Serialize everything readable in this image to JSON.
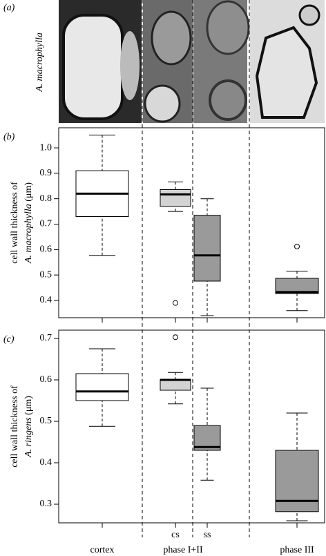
{
  "panel_a": {
    "label": "(a)",
    "species": "A. macrophylla"
  },
  "chart_data": [
    {
      "type": "box",
      "panel_label": "(b)",
      "y_label": {
        "line1": "cell wall thickness of",
        "species": "A. macrophylla",
        "unit": "(μm)"
      },
      "ylim": [
        0.332,
        1.079
      ],
      "yticks": [
        0.4,
        0.5,
        0.6,
        0.7,
        0.8,
        0.9,
        {
          "value": 1,
          "label": "1.0"
        }
      ],
      "colors": [
        "#ffffff",
        "#d3d3d3",
        "#9a9a9a",
        "#9a9a9a"
      ],
      "boxes": [
        {
          "low": 0.577,
          "q1": 0.73,
          "median": 0.82,
          "q3": 0.91,
          "high": 1.05,
          "outliers": []
        },
        {
          "low": 0.75,
          "q1": 0.77,
          "median": 0.817,
          "q3": 0.836,
          "high": 0.866,
          "outliers": [
            0.39
          ]
        },
        {
          "low": 0.34,
          "q1": 0.476,
          "median": 0.577,
          "q3": 0.735,
          "high": 0.8,
          "outliers": []
        },
        {
          "low": 0.36,
          "q1": 0.427,
          "median": 0.433,
          "q3": 0.487,
          "high": 0.515,
          "outliers": [
            0.612
          ]
        }
      ]
    },
    {
      "type": "box",
      "panel_label": "(c)",
      "y_label": {
        "line1": "cell wall thickness of",
        "species": "A. ringens",
        "unit": "(μm)"
      },
      "ylim": [
        0.255,
        0.72
      ],
      "yticks": [
        0.3,
        0.4,
        0.5,
        0.6,
        0.7
      ],
      "colors": [
        "#ffffff",
        "#d3d3d3",
        "#9a9a9a",
        "#9a9a9a"
      ],
      "categories": [
        "cortex",
        "cs",
        "ss",
        "phase III"
      ],
      "group_label": "phase I+II",
      "boxes": [
        {
          "low": 0.488,
          "q1": 0.55,
          "median": 0.572,
          "q3": 0.615,
          "high": 0.675,
          "outliers": []
        },
        {
          "low": 0.542,
          "q1": 0.575,
          "median": 0.6,
          "q3": 0.601,
          "high": 0.618,
          "outliers": [
            0.703
          ]
        },
        {
          "low": 0.358,
          "q1": 0.43,
          "median": 0.438,
          "q3": 0.49,
          "high": 0.58,
          "outliers": []
        },
        {
          "low": 0.26,
          "q1": 0.282,
          "median": 0.308,
          "q3": 0.43,
          "high": 0.52,
          "outliers": []
        }
      ]
    }
  ]
}
